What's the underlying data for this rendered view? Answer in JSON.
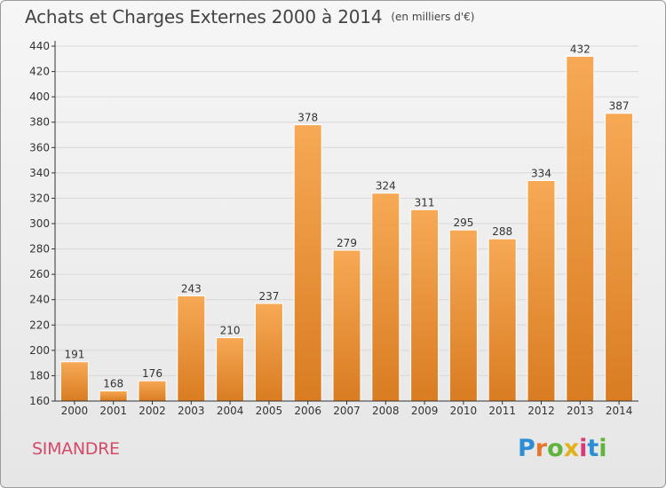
{
  "title": "Achats et Charges Externes 2000 à 2014",
  "unit": "(en milliers d'€)",
  "town": "SIMANDRE",
  "logo": {
    "text": "Proxiti",
    "colors": [
      "#2c8fd6",
      "#e8772e",
      "#62b33b",
      "#e3b21b",
      "#d93a77",
      "#2c8fd6",
      "#62b33b"
    ]
  },
  "colors": {
    "bar_light": "#f7a955",
    "bar_dark": "#d97c22",
    "axis": "#333333",
    "grid": "#d8d8d8",
    "text": "#333333"
  },
  "chart_data": {
    "type": "bar",
    "categories": [
      "2000",
      "2001",
      "2002",
      "2003",
      "2004",
      "2005",
      "2006",
      "2007",
      "2008",
      "2009",
      "2010",
      "2011",
      "2012",
      "2013",
      "2014"
    ],
    "values": [
      191,
      168,
      176,
      243,
      210,
      237,
      378,
      279,
      324,
      311,
      295,
      288,
      334,
      432,
      387
    ],
    "ylim": [
      160,
      440
    ],
    "yticks": [
      160,
      180,
      200,
      220,
      240,
      260,
      280,
      300,
      320,
      340,
      360,
      380,
      400,
      420,
      440
    ],
    "grid": true,
    "data_labels": true
  }
}
